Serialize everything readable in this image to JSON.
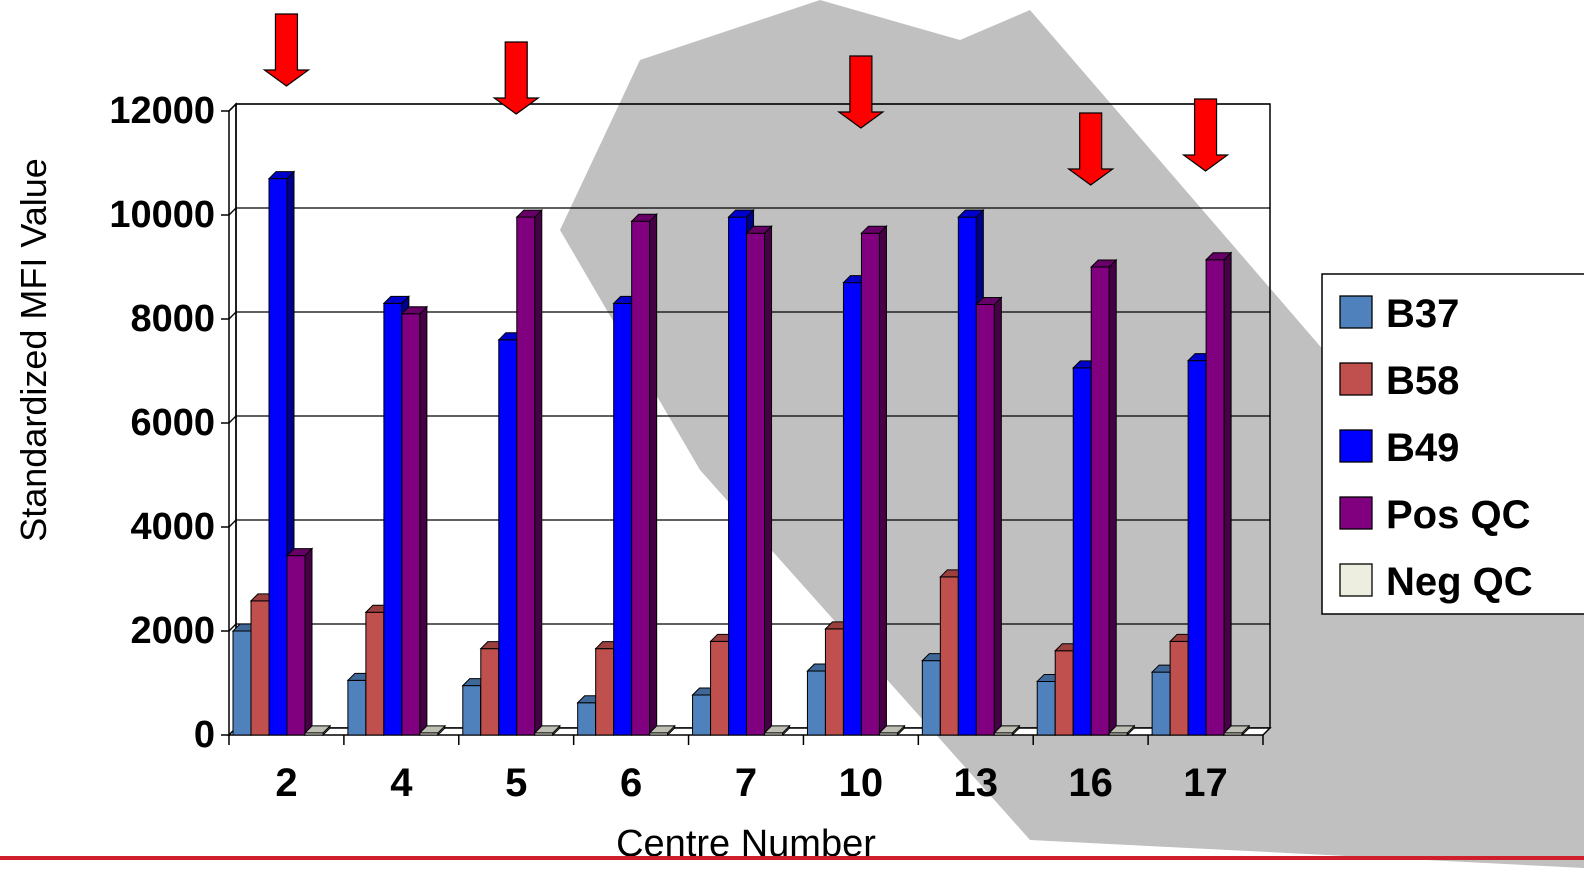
{
  "chart_data": {
    "type": "bar",
    "categories": [
      "2",
      "4",
      "5",
      "6",
      "7",
      "10",
      "13",
      "16",
      "17"
    ],
    "series": [
      {
        "name": "B37",
        "color": "#4f81bd",
        "values": [
          2000,
          1050,
          950,
          620,
          770,
          1230,
          1430,
          1030,
          1210
        ]
      },
      {
        "name": "B58",
        "color": "#c0504d",
        "values": [
          2580,
          2360,
          1660,
          1660,
          1800,
          2040,
          3040,
          1620,
          1800
        ]
      },
      {
        "name": "B49",
        "color": "#0000ff",
        "values": [
          10700,
          8300,
          7600,
          8300,
          9960,
          8700,
          9960,
          7060,
          7200
        ]
      },
      {
        "name": "Pos QC",
        "color": "#800080",
        "values": [
          3450,
          8100,
          9960,
          9880,
          9650,
          9650,
          8280,
          9000,
          9140
        ]
      },
      {
        "name": "Neg QC",
        "color": "#eeeee0",
        "values": [
          40,
          40,
          40,
          40,
          40,
          40,
          40,
          40,
          40
        ]
      }
    ],
    "title": "",
    "xlabel": "Centre Number",
    "ylabel": "Standardized MFI Value",
    "ylim": [
      0,
      12000
    ],
    "yticks": [
      "0",
      "2000",
      "4000",
      "6000",
      "8000",
      "10000",
      "12000"
    ],
    "grid": true,
    "legend": "right",
    "highlighted_categories": [
      "2",
      "5",
      "10",
      "16",
      "17"
    ],
    "colors": {
      "arrow": "#ff0000",
      "watermark": "#c0c0c0",
      "bottom_rule": "#d01f2c"
    }
  }
}
